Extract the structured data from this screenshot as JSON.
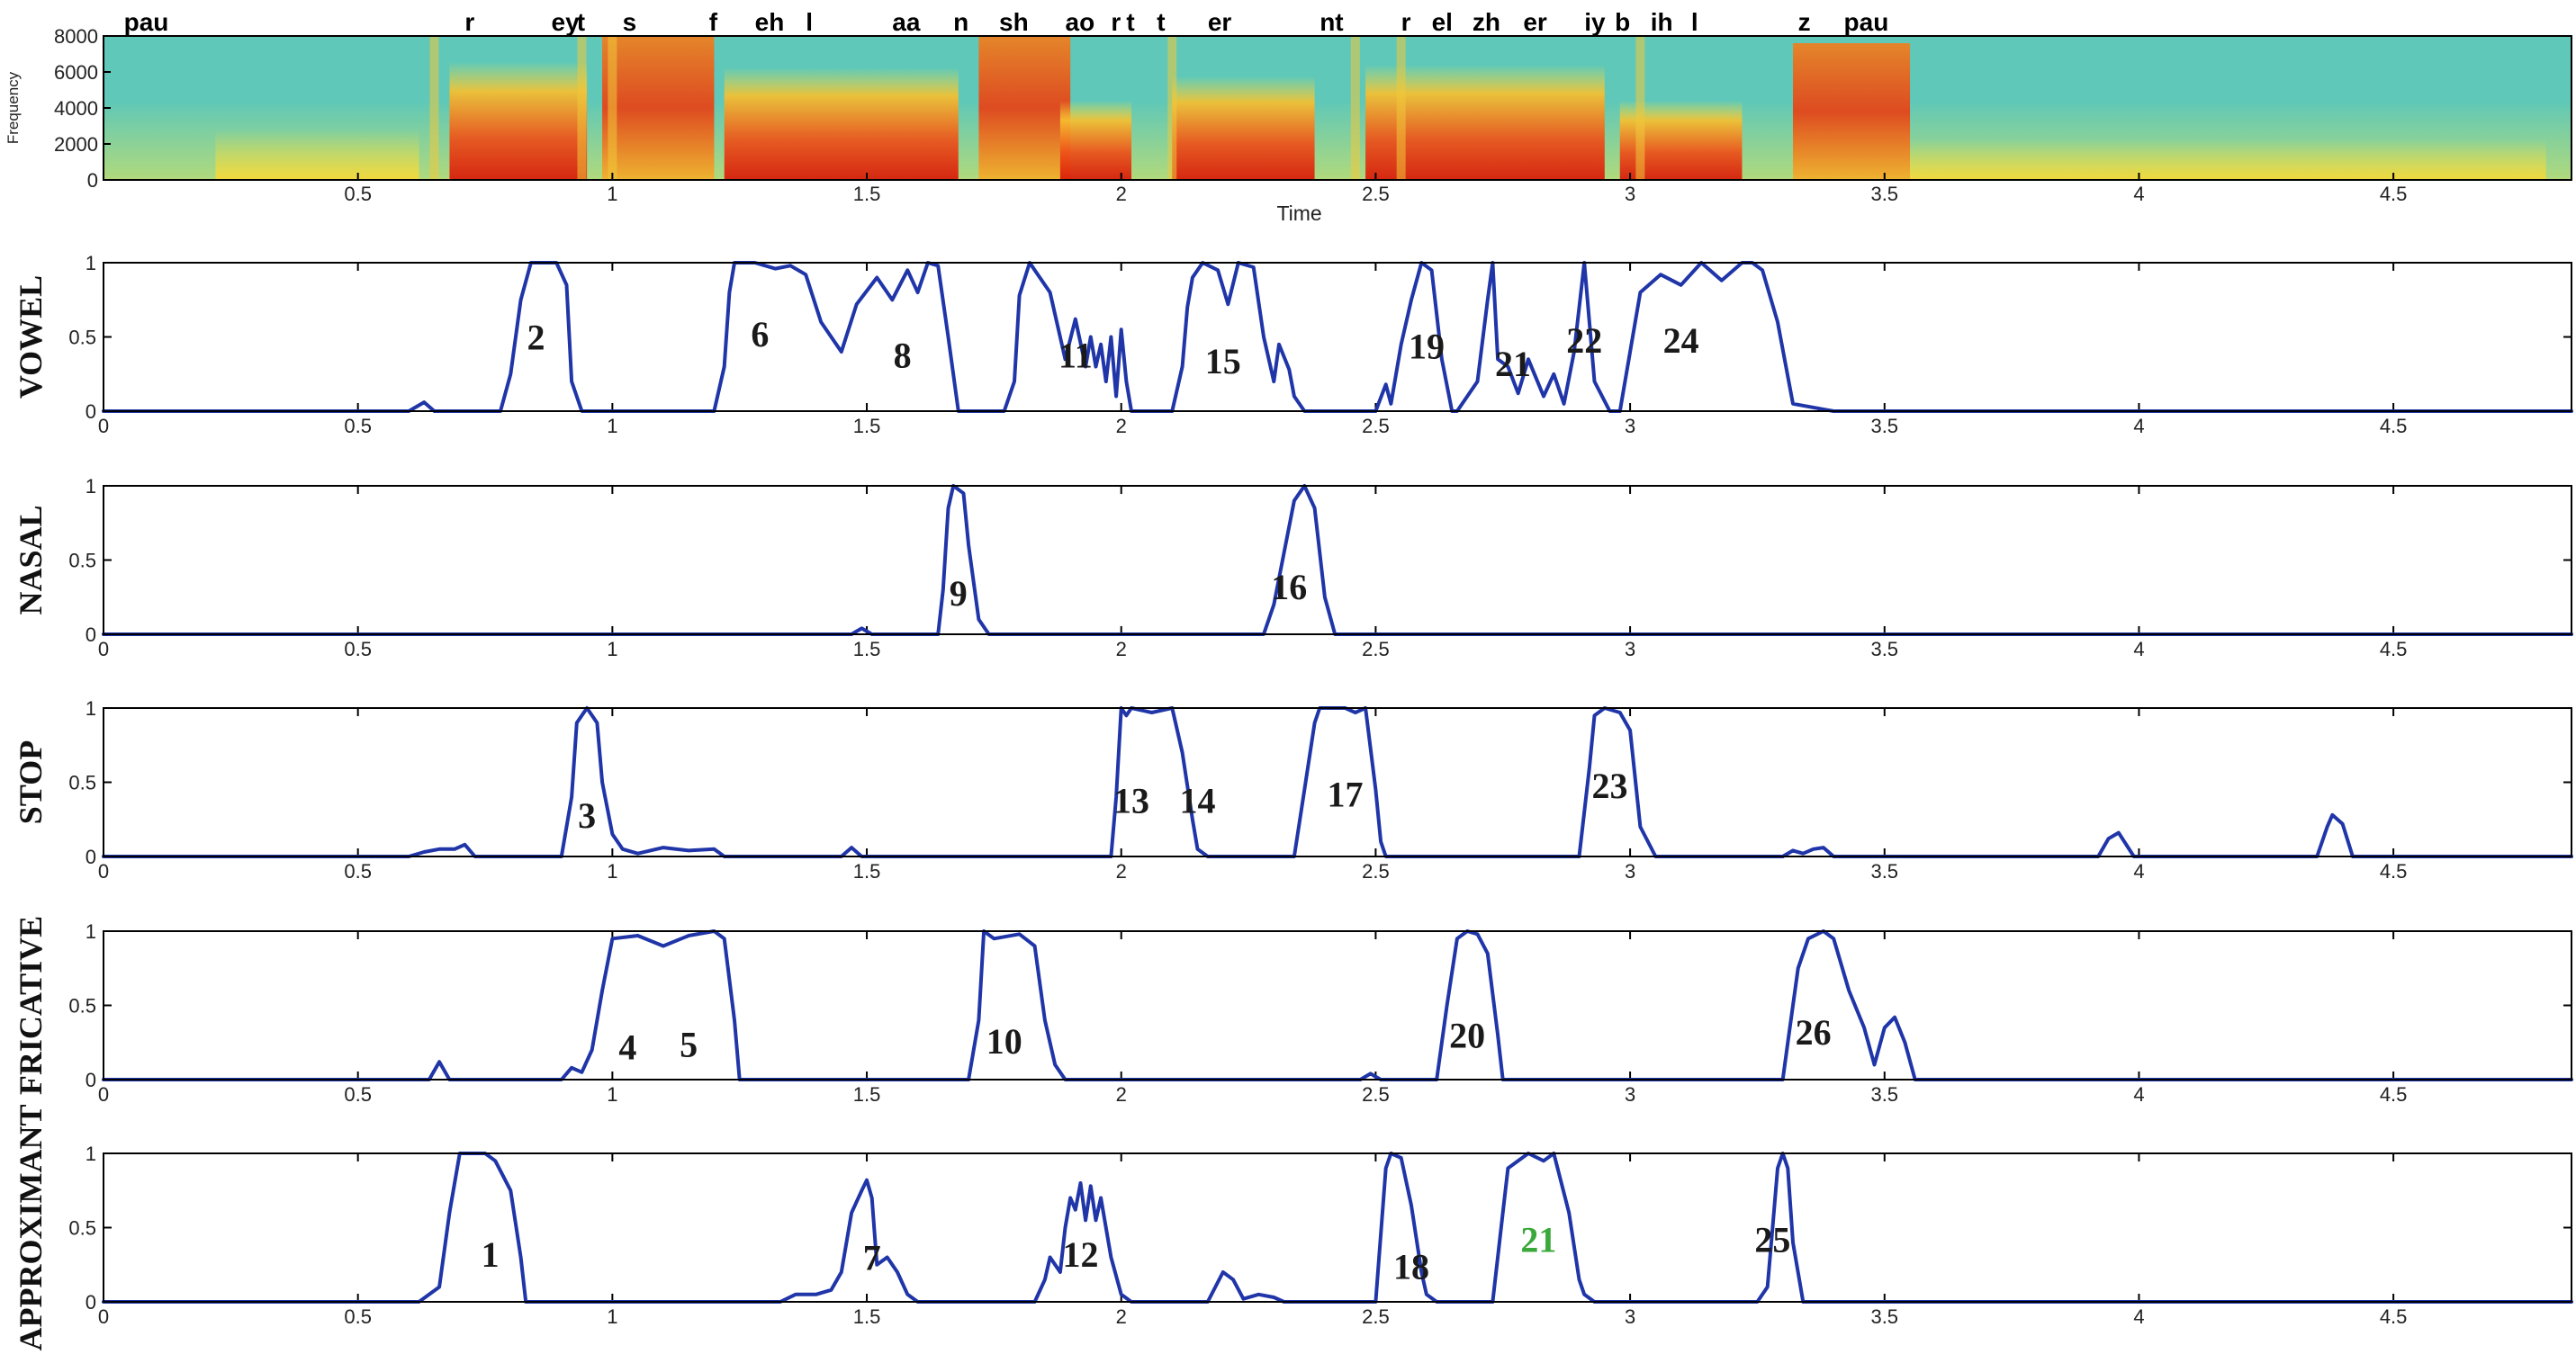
{
  "chart_data": [
    {
      "type": "heatmap",
      "ylabel": "Frequency",
      "xlabel": "Time",
      "xlim": [
        0,
        4.85
      ],
      "ylim": [
        0,
        8000
      ],
      "y_ticks": [
        0,
        2000,
        4000,
        6000,
        8000
      ],
      "x_ticks": [
        0.5,
        1,
        1.5,
        2,
        2.5,
        3,
        3.5,
        4,
        4.5
      ],
      "phone_labels": [
        {
          "text": "pau",
          "x": 0.04
        },
        {
          "text": "r",
          "x": 0.71
        },
        {
          "text": "ey",
          "x": 0.88
        },
        {
          "text": "t",
          "x": 0.93
        },
        {
          "text": "s",
          "x": 1.02
        },
        {
          "text": "f",
          "x": 1.19
        },
        {
          "text": "eh",
          "x": 1.28
        },
        {
          "text": "l",
          "x": 1.38
        },
        {
          "text": "aa",
          "x": 1.55
        },
        {
          "text": "n",
          "x": 1.67
        },
        {
          "text": "sh",
          "x": 1.76
        },
        {
          "text": "ao",
          "x": 1.89
        },
        {
          "text": "r",
          "x": 1.98
        },
        {
          "text": "t",
          "x": 2.01
        },
        {
          "text": "t",
          "x": 2.07
        },
        {
          "text": "er",
          "x": 2.17
        },
        {
          "text": "nt",
          "x": 2.39
        },
        {
          "text": "r",
          "x": 2.55
        },
        {
          "text": "el",
          "x": 2.61
        },
        {
          "text": "zh",
          "x": 2.69
        },
        {
          "text": "er",
          "x": 2.79
        },
        {
          "text": "iy",
          "x": 2.91
        },
        {
          "text": "b",
          "x": 2.97
        },
        {
          "text": "ih",
          "x": 3.04
        },
        {
          "text": "l",
          "x": 3.12
        },
        {
          "text": "z",
          "x": 3.33
        },
        {
          "text": "pau",
          "x": 3.42
        }
      ]
    },
    {
      "type": "line",
      "ylabel": "VOWEL",
      "xlim": [
        0,
        4.85
      ],
      "ylim": [
        0,
        1
      ],
      "y_ticks": [
        0,
        0.5,
        1
      ],
      "x_ticks": [
        0,
        0.5,
        1,
        1.5,
        2,
        2.5,
        3,
        3.5,
        4,
        4.5
      ],
      "series": [
        {
          "x": [
            0,
            0.6,
            0.63,
            0.65,
            0.78,
            0.8,
            0.82,
            0.84,
            0.89,
            0.91,
            0.92,
            0.94,
            1.2,
            1.22,
            1.23,
            1.24,
            1.28,
            1.32,
            1.35,
            1.38,
            1.41,
            1.45,
            1.48,
            1.52,
            1.55,
            1.58,
            1.6,
            1.62,
            1.64,
            1.66,
            1.68,
            1.77,
            1.79,
            1.8,
            1.82,
            1.83,
            1.86,
            1.89,
            1.91,
            1.93,
            1.94,
            1.95,
            1.96,
            1.97,
            1.98,
            1.99,
            2.0,
            2.01,
            2.02,
            2.1,
            2.12,
            2.13,
            2.14,
            2.16,
            2.19,
            2.21,
            2.23,
            2.26,
            2.28,
            2.3,
            2.31,
            2.33,
            2.34,
            2.36,
            2.5,
            2.52,
            2.53,
            2.55,
            2.57,
            2.59,
            2.61,
            2.63,
            2.65,
            2.66,
            2.7,
            2.72,
            2.73,
            2.74,
            2.76,
            2.78,
            2.8,
            2.83,
            2.85,
            2.87,
            2.89,
            2.91,
            2.93,
            2.96,
            2.98,
            3.0,
            3.02,
            3.06,
            3.1,
            3.14,
            3.18,
            3.22,
            3.24,
            3.26,
            3.29,
            3.32,
            3.4,
            4.85
          ],
          "values": [
            0,
            0,
            0.06,
            0,
            0,
            0.25,
            0.75,
            1,
            1,
            0.85,
            0.2,
            0,
            0,
            0.3,
            0.8,
            1,
            1,
            0.96,
            0.98,
            0.92,
            0.6,
            0.4,
            0.72,
            0.9,
            0.75,
            0.95,
            0.8,
            1,
            0.98,
            0.5,
            0,
            0,
            0.2,
            0.78,
            1,
            0.95,
            0.8,
            0.35,
            0.62,
            0.3,
            0.5,
            0.3,
            0.45,
            0.2,
            0.5,
            0.1,
            0.55,
            0.2,
            0,
            0,
            0.3,
            0.7,
            0.9,
            1,
            0.95,
            0.72,
            1,
            0.97,
            0.5,
            0.2,
            0.45,
            0.28,
            0.1,
            0,
            0,
            0.18,
            0.05,
            0.45,
            0.75,
            1,
            0.95,
            0.35,
            0,
            0,
            0.2,
            0.75,
            1,
            0.35,
            0.3,
            0.12,
            0.35,
            0.1,
            0.25,
            0.05,
            0.4,
            1,
            0.2,
            0,
            0,
            0.4,
            0.8,
            0.92,
            0.85,
            1,
            0.88,
            1,
            1,
            0.95,
            0.6,
            0.05,
            0,
            0
          ]
        }
      ],
      "annotations": [
        {
          "text": "2",
          "x": 0.85,
          "y": 0.5
        },
        {
          "text": "6",
          "x": 1.29,
          "y": 0.52
        },
        {
          "text": "8",
          "x": 1.57,
          "y": 0.38
        },
        {
          "text": "11",
          "x": 1.91,
          "y": 0.38
        },
        {
          "text": "15",
          "x": 2.2,
          "y": 0.34
        },
        {
          "text": "19",
          "x": 2.6,
          "y": 0.44
        },
        {
          "text": "21",
          "x": 2.77,
          "y": 0.32
        },
        {
          "text": "22",
          "x": 2.91,
          "y": 0.48
        },
        {
          "text": "24",
          "x": 3.1,
          "y": 0.48
        }
      ]
    },
    {
      "type": "line",
      "ylabel": "NASAL",
      "xlim": [
        0,
        4.85
      ],
      "ylim": [
        0,
        1
      ],
      "y_ticks": [
        0,
        0.5,
        1
      ],
      "x_ticks": [
        0,
        0.5,
        1,
        1.5,
        2,
        2.5,
        3,
        3.5,
        4,
        4.5
      ],
      "series": [
        {
          "x": [
            0,
            1.47,
            1.49,
            1.51,
            1.64,
            1.65,
            1.66,
            1.67,
            1.69,
            1.7,
            1.72,
            1.74,
            2.28,
            2.3,
            2.32,
            2.34,
            2.36,
            2.38,
            2.4,
            2.42,
            4.85
          ],
          "values": [
            0,
            0,
            0.04,
            0,
            0,
            0.3,
            0.85,
            1,
            0.95,
            0.6,
            0.1,
            0,
            0,
            0.2,
            0.55,
            0.9,
            1,
            0.85,
            0.25,
            0,
            0
          ]
        }
      ],
      "annotations": [
        {
          "text": "9",
          "x": 1.68,
          "y": 0.28
        },
        {
          "text": "16",
          "x": 2.33,
          "y": 0.32
        }
      ]
    },
    {
      "type": "line",
      "ylabel": "STOP",
      "xlim": [
        0,
        4.85
      ],
      "ylim": [
        0,
        1
      ],
      "y_ticks": [
        0,
        0.5,
        1
      ],
      "x_ticks": [
        0,
        0.5,
        1,
        1.5,
        2,
        2.5,
        3,
        3.5,
        4,
        4.5
      ],
      "series": [
        {
          "x": [
            0,
            0.6,
            0.63,
            0.66,
            0.69,
            0.71,
            0.73,
            0.9,
            0.92,
            0.93,
            0.95,
            0.97,
            0.98,
            1.0,
            1.02,
            1.05,
            1.1,
            1.15,
            1.2,
            1.22,
            1.45,
            1.47,
            1.49,
            1.98,
            1.99,
            2.0,
            2.01,
            2.02,
            2.06,
            2.1,
            2.12,
            2.14,
            2.15,
            2.17,
            2.34,
            2.36,
            2.38,
            2.39,
            2.44,
            2.46,
            2.48,
            2.5,
            2.51,
            2.52,
            2.9,
            2.92,
            2.93,
            2.95,
            2.98,
            3.0,
            3.02,
            3.05,
            3.3,
            3.32,
            3.34,
            3.36,
            3.38,
            3.4,
            3.92,
            3.94,
            3.96,
            3.99,
            4.35,
            4.37,
            4.38,
            4.4,
            4.42,
            4.85
          ],
          "values": [
            0,
            0,
            0.03,
            0.05,
            0.05,
            0.08,
            0,
            0,
            0.4,
            0.9,
            1,
            0.9,
            0.5,
            0.15,
            0.05,
            0.02,
            0.06,
            0.04,
            0.05,
            0,
            0,
            0.06,
            0,
            0,
            0.4,
            1,
            0.95,
            1,
            0.97,
            1,
            0.7,
            0.25,
            0.05,
            0,
            0,
            0.45,
            0.9,
            1,
            1,
            0.97,
            1,
            0.45,
            0.1,
            0,
            0,
            0.6,
            0.95,
            1,
            0.97,
            0.85,
            0.2,
            0,
            0,
            0.04,
            0.02,
            0.05,
            0.06,
            0,
            0,
            0.12,
            0.16,
            0,
            0,
            0.2,
            0.28,
            0.22,
            0,
            0
          ]
        }
      ],
      "annotations": [
        {
          "text": "3",
          "x": 0.95,
          "y": 0.28
        },
        {
          "text": "13",
          "x": 2.02,
          "y": 0.38
        },
        {
          "text": "14",
          "x": 2.15,
          "y": 0.38
        },
        {
          "text": "17",
          "x": 2.44,
          "y": 0.42
        },
        {
          "text": "23",
          "x": 2.96,
          "y": 0.48
        }
      ]
    },
    {
      "type": "line",
      "ylabel": "FRICATIVE",
      "xlim": [
        0,
        4.85
      ],
      "ylim": [
        0,
        1
      ],
      "y_ticks": [
        0,
        0.5,
        1
      ],
      "x_ticks": [
        0,
        0.5,
        1,
        1.5,
        2,
        2.5,
        3,
        3.5,
        4,
        4.5
      ],
      "series": [
        {
          "x": [
            0,
            0.64,
            0.66,
            0.68,
            0.9,
            0.92,
            0.94,
            0.96,
            0.98,
            1.0,
            1.05,
            1.1,
            1.15,
            1.2,
            1.22,
            1.24,
            1.25,
            1.7,
            1.72,
            1.73,
            1.75,
            1.8,
            1.83,
            1.85,
            1.87,
            1.89,
            2.47,
            2.49,
            2.51,
            2.62,
            2.64,
            2.66,
            2.68,
            2.7,
            2.72,
            2.74,
            2.75,
            3.3,
            3.31,
            3.33,
            3.35,
            3.38,
            3.4,
            3.43,
            3.46,
            3.48,
            3.5,
            3.52,
            3.54,
            3.56,
            4.85
          ],
          "values": [
            0,
            0,
            0.12,
            0,
            0,
            0.08,
            0.05,
            0.2,
            0.6,
            0.95,
            0.97,
            0.9,
            0.97,
            1,
            0.95,
            0.4,
            0,
            0,
            0.4,
            1,
            0.95,
            0.98,
            0.9,
            0.4,
            0.1,
            0,
            0,
            0.04,
            0,
            0,
            0.5,
            0.95,
            1,
            0.98,
            0.85,
            0.3,
            0,
            0,
            0.25,
            0.75,
            0.95,
            1,
            0.95,
            0.6,
            0.35,
            0.1,
            0.35,
            0.42,
            0.25,
            0,
            0
          ]
        }
      ],
      "annotations": [
        {
          "text": "4",
          "x": 1.03,
          "y": 0.22
        },
        {
          "text": "5",
          "x": 1.15,
          "y": 0.24
        },
        {
          "text": "10",
          "x": 1.77,
          "y": 0.26
        },
        {
          "text": "20",
          "x": 2.68,
          "y": 0.3
        },
        {
          "text": "26",
          "x": 3.36,
          "y": 0.32
        }
      ]
    },
    {
      "type": "line",
      "ylabel": "APPROXIMANT",
      "xlim": [
        0,
        4.85
      ],
      "ylim": [
        0,
        1
      ],
      "y_ticks": [
        0,
        0.5,
        1
      ],
      "x_ticks": [
        0,
        0.5,
        1,
        1.5,
        2,
        2.5,
        3,
        3.5,
        4,
        4.5
      ],
      "series": [
        {
          "x": [
            0,
            0.62,
            0.64,
            0.66,
            0.68,
            0.7,
            0.75,
            0.77,
            0.8,
            0.82,
            0.83,
            1.33,
            1.36,
            1.4,
            1.43,
            1.45,
            1.47,
            1.49,
            1.5,
            1.51,
            1.52,
            1.54,
            1.56,
            1.58,
            1.6,
            1.63,
            1.83,
            1.85,
            1.86,
            1.88,
            1.89,
            1.9,
            1.91,
            1.92,
            1.93,
            1.94,
            1.95,
            1.96,
            1.98,
            2.0,
            2.02,
            2.17,
            2.2,
            2.22,
            2.24,
            2.27,
            2.3,
            2.32,
            2.5,
            2.52,
            2.53,
            2.55,
            2.57,
            2.59,
            2.6,
            2.62,
            2.73,
            2.75,
            2.76,
            2.78,
            2.8,
            2.83,
            2.85,
            2.88,
            2.9,
            2.91,
            2.93,
            3.25,
            3.27,
            3.28,
            3.29,
            3.3,
            3.31,
            3.32,
            3.34,
            4.85
          ],
          "values": [
            0,
            0,
            0.05,
            0.1,
            0.6,
            1,
            1,
            0.95,
            0.75,
            0.3,
            0,
            0,
            0.05,
            0.05,
            0.08,
            0.2,
            0.6,
            0.75,
            0.82,
            0.7,
            0.25,
            0.3,
            0.2,
            0.05,
            0,
            0,
            0,
            0.15,
            0.3,
            0.2,
            0.5,
            0.7,
            0.62,
            0.8,
            0.55,
            0.78,
            0.55,
            0.7,
            0.3,
            0.05,
            0,
            0,
            0.2,
            0.15,
            0.02,
            0.05,
            0.03,
            0,
            0,
            0.9,
            1,
            0.97,
            0.65,
            0.2,
            0.05,
            0,
            0,
            0.6,
            0.9,
            0.95,
            1,
            0.95,
            1,
            0.6,
            0.15,
            0.05,
            0,
            0,
            0.1,
            0.5,
            0.9,
            1,
            0.9,
            0.4,
            0,
            0
          ]
        }
      ],
      "annotations": [
        {
          "text": "1",
          "x": 0.76,
          "y": 0.32,
          "color": "#1a1a1a"
        },
        {
          "text": "7",
          "x": 1.51,
          "y": 0.3,
          "color": "#1a1a1a"
        },
        {
          "text": "12",
          "x": 1.92,
          "y": 0.32,
          "color": "#1a1a1a"
        },
        {
          "text": "18",
          "x": 2.57,
          "y": 0.24,
          "color": "#1a1a1a"
        },
        {
          "text": "21",
          "x": 2.82,
          "y": 0.42,
          "color": "#3aa83a"
        },
        {
          "text": "25",
          "x": 3.28,
          "y": 0.42,
          "color": "#1a1a1a"
        }
      ]
    }
  ],
  "colors": {
    "curve": "#1f35a8",
    "highlight_label": "#3aa83a",
    "spectrogram_background": "#5fc8b8",
    "spectrogram_low": "#f0e040",
    "spectrogram_high": "#e03010"
  }
}
